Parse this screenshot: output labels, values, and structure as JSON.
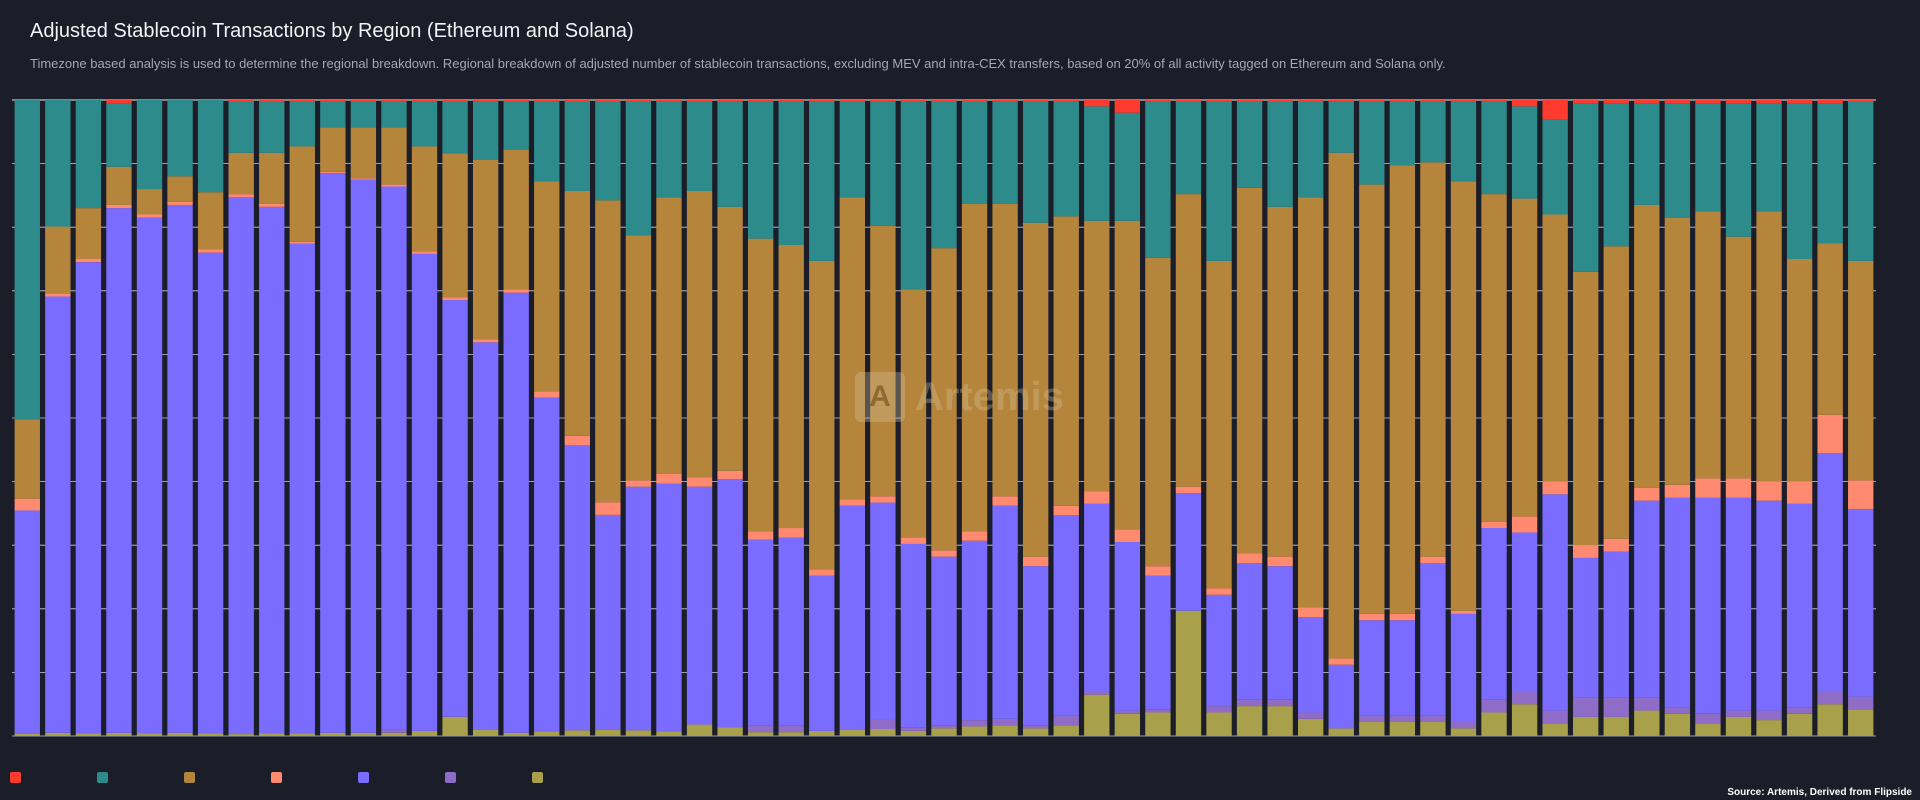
{
  "title": "Adjusted Stablecoin Transactions by Region (Ethereum and Solana)",
  "subtitle": "Timezone based analysis is used to determine the regional breakdown. Regional breakdown of adjusted number of stablecoin transactions, excluding MEV and intra-CEX transfers, based on 20% of all activity tagged on Ethereum and Solana only.",
  "watermark": "Artemis",
  "source": "Source: Artemis, Derived from Flipside",
  "chart_data": {
    "type": "bar",
    "stacked": true,
    "normalized": true,
    "ylim": [
      0,
      100
    ],
    "grid": true,
    "legend_position": "bottom-left",
    "series_order": [
      "s7",
      "s6",
      "s5",
      "s4",
      "s3",
      "s2",
      "s1"
    ],
    "series": [
      {
        "key": "s1",
        "name": "",
        "color": "#ff3b30"
      },
      {
        "key": "s2",
        "name": "",
        "color": "#2e8b8b"
      },
      {
        "key": "s3",
        "name": "",
        "color": "#b5853c"
      },
      {
        "key": "s4",
        "name": "",
        "color": "#ff8a70"
      },
      {
        "key": "s5",
        "name": "",
        "color": "#7a6cff"
      },
      {
        "key": "s6",
        "name": "",
        "color": "#8e6cc8"
      },
      {
        "key": "s7",
        "name": "",
        "color": "#a9a04c"
      }
    ],
    "bars": [
      [
        0,
        54.2,
        13.5,
        2.0,
        37.9,
        0.0,
        0.4
      ],
      [
        0,
        19.9,
        10.5,
        0.5,
        68.6,
        0.0,
        0.5
      ],
      [
        0,
        17.0,
        8.0,
        0.5,
        74.1,
        0.0,
        0.4
      ],
      [
        0.5,
        10.0,
        6.0,
        0.5,
        82.5,
        0.0,
        0.5
      ],
      [
        0,
        14.0,
        4.0,
        0.5,
        81.1,
        0.0,
        0.4
      ],
      [
        0,
        12.0,
        4.0,
        0.5,
        83.0,
        0.0,
        0.5
      ],
      [
        0,
        14.5,
        9.0,
        0.5,
        75.6,
        0.0,
        0.4
      ],
      [
        0.3,
        8.0,
        6.5,
        0.5,
        84.4,
        0.0,
        0.3
      ],
      [
        0.3,
        8.0,
        8.0,
        0.5,
        82.8,
        0.0,
        0.4
      ],
      [
        0.3,
        7.0,
        15.0,
        0.3,
        77.0,
        0.0,
        0.4
      ],
      [
        0.3,
        4.0,
        7.0,
        0.2,
        88.0,
        0.0,
        0.5
      ],
      [
        0.3,
        4.0,
        8.0,
        0.2,
        87.0,
        0.0,
        0.5
      ],
      [
        0.3,
        4.0,
        9.0,
        0.3,
        85.4,
        0.5,
        0.5
      ],
      [
        0.3,
        7.0,
        16.5,
        0.4,
        75.0,
        0.0,
        0.8
      ],
      [
        0.3,
        8.0,
        22.5,
        0.4,
        65.0,
        0.0,
        3.0
      ],
      [
        0.3,
        9.0,
        28.0,
        0.5,
        60.4,
        0.0,
        1.0
      ],
      [
        0.3,
        7.5,
        22.0,
        0.5,
        69.2,
        0.0,
        0.5
      ],
      [
        0.3,
        12.5,
        33.0,
        1.0,
        52.5,
        0.0,
        0.7
      ],
      [
        0.3,
        14.0,
        38.5,
        1.5,
        44.8,
        0.0,
        0.9
      ],
      [
        0.3,
        15.5,
        47.5,
        2.0,
        33.8,
        0.0,
        1.0
      ],
      [
        0.3,
        21.0,
        38.5,
        1.0,
        38.3,
        0.0,
        0.9
      ],
      [
        0.3,
        15.0,
        43.5,
        1.5,
        39.0,
        0.0,
        0.7
      ],
      [
        0.3,
        14.0,
        45.0,
        1.5,
        37.4,
        0.0,
        1.8
      ],
      [
        0.3,
        16.5,
        41.5,
        1.3,
        39.0,
        0.0,
        1.4
      ],
      [
        0.3,
        21.5,
        46.0,
        1.3,
        29.3,
        1.0,
        0.6
      ],
      [
        0.3,
        22.5,
        44.5,
        1.5,
        29.6,
        1.0,
        0.6
      ],
      [
        0.3,
        25.0,
        48.5,
        1.0,
        24.4,
        0.0,
        0.8
      ],
      [
        0.3,
        15.0,
        47.5,
        1.0,
        35.2,
        0.0,
        1.0
      ],
      [
        0.3,
        19.5,
        42.5,
        1.0,
        34.1,
        1.5,
        1.1
      ],
      [
        0.3,
        29.5,
        39.0,
        1.0,
        28.9,
        0.5,
        0.8
      ],
      [
        0.3,
        23.0,
        47.5,
        1.0,
        26.5,
        0.5,
        1.2
      ],
      [
        0.3,
        16.0,
        51.5,
        1.5,
        28.2,
        1.0,
        1.5
      ],
      [
        0.3,
        16.0,
        46.0,
        1.5,
        33.5,
        1.0,
        1.7
      ],
      [
        0.3,
        19.0,
        52.5,
        1.5,
        25.0,
        0.5,
        1.2
      ],
      [
        0.3,
        18.0,
        45.5,
        1.5,
        31.5,
        1.5,
        1.7
      ],
      [
        1.0,
        18.0,
        42.5,
        2.0,
        29.5,
        0.5,
        6.5
      ],
      [
        2.0,
        17.0,
        48.5,
        2.0,
        26.5,
        0.5,
        3.5
      ],
      [
        0.3,
        24.5,
        48.5,
        1.5,
        21.0,
        0.5,
        3.7
      ],
      [
        0.3,
        14.5,
        46.0,
        1.0,
        18.5,
        0.0,
        19.7
      ],
      [
        0.3,
        25.0,
        51.5,
        1.0,
        17.5,
        1.0,
        3.7
      ],
      [
        0.3,
        13.5,
        57.5,
        1.5,
        21.5,
        1.0,
        4.7
      ],
      [
        0.3,
        16.5,
        55.0,
        1.5,
        21.0,
        1.0,
        4.7
      ],
      [
        0.3,
        15.0,
        64.5,
        1.5,
        15.0,
        1.0,
        2.7
      ],
      [
        0.3,
        8.0,
        79.5,
        1.0,
        10.0,
        0.0,
        1.2
      ],
      [
        0.3,
        13.0,
        67.5,
        1.0,
        15.0,
        1.0,
        2.2
      ],
      [
        0.3,
        10.0,
        70.5,
        1.0,
        15.0,
        1.0,
        2.2
      ],
      [
        0.3,
        9.5,
        62.0,
        1.0,
        24.0,
        1.0,
        2.2
      ],
      [
        0.3,
        12.5,
        67.5,
        0.5,
        17.0,
        1.0,
        1.2
      ],
      [
        0.3,
        14.5,
        51.5,
        1.0,
        27.0,
        2.0,
        3.7
      ],
      [
        1.0,
        14.5,
        50.0,
        2.5,
        25.0,
        2.0,
        5.0
      ],
      [
        3.0,
        15.0,
        42.0,
        2.0,
        34.0,
        2.0,
        2.0
      ],
      [
        0.5,
        26.5,
        43.0,
        2.0,
        22.0,
        3.0,
        3.0
      ],
      [
        0.5,
        22.5,
        46.0,
        2.0,
        23.0,
        3.0,
        3.0
      ],
      [
        0.5,
        16.0,
        44.5,
        2.0,
        31.0,
        2.0,
        4.0
      ],
      [
        0.5,
        18.0,
        42.0,
        2.0,
        33.0,
        1.0,
        3.5
      ],
      [
        0.5,
        17.0,
        42.0,
        3.0,
        34.0,
        1.5,
        2.0
      ],
      [
        0.5,
        21.0,
        38.0,
        3.0,
        33.5,
        1.0,
        3.0
      ],
      [
        0.5,
        17.0,
        42.5,
        3.0,
        33.0,
        1.5,
        2.5
      ],
      [
        0.5,
        24.5,
        35.0,
        3.5,
        32.0,
        1.0,
        3.5
      ],
      [
        0.5,
        22.0,
        27.0,
        6.0,
        37.5,
        2.0,
        5.0
      ],
      [
        0.3,
        25.0,
        34.5,
        4.5,
        29.5,
        2.0,
        4.2
      ]
    ]
  },
  "legend": [
    {
      "key": "s1",
      "label": "",
      "color": "#ff3b30"
    },
    {
      "key": "s2",
      "label": "",
      "color": "#2e8b8b"
    },
    {
      "key": "s3",
      "label": "",
      "color": "#b5853c"
    },
    {
      "key": "s4",
      "label": "",
      "color": "#ff8a70"
    },
    {
      "key": "s5",
      "label": "",
      "color": "#7a6cff"
    },
    {
      "key": "s6",
      "label": "",
      "color": "#8e6cc8"
    },
    {
      "key": "s7",
      "label": "",
      "color": "#a9a04c"
    }
  ]
}
